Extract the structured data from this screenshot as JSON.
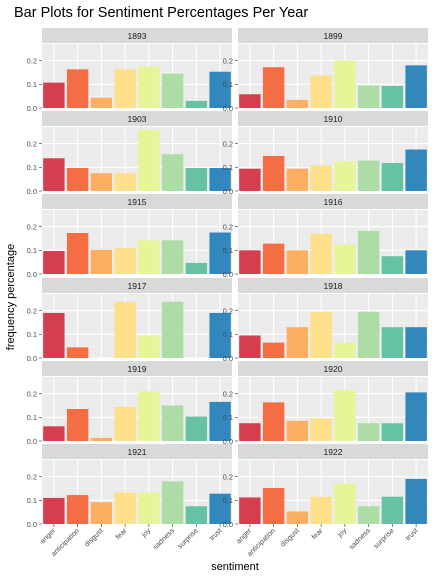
{
  "chart_data": {
    "type": "bar",
    "title": "Bar Plots for Sentiment Percentages Per Year",
    "xlabel": "sentiment",
    "ylabel": "frequency percentage",
    "ylim": [
      0,
      0.27
    ],
    "yticks": [
      "0.0",
      "0.1",
      "0.2"
    ],
    "ytick_values": [
      0,
      0.1,
      0.2
    ],
    "grid": true,
    "legend": "none",
    "categories": [
      "anger",
      "anticipation",
      "disgust",
      "fear",
      "joy",
      "sadness",
      "surprise",
      "trust"
    ],
    "colors": [
      "#D53E4F",
      "#F46D43",
      "#FDAE61",
      "#FEE08B",
      "#E6F598",
      "#ABDDA4",
      "#66C2A5",
      "#3288BD"
    ],
    "panels": [
      {
        "label": "1893",
        "values": [
          0.107,
          0.163,
          0.043,
          0.163,
          0.175,
          0.145,
          0.03,
          0.153
        ]
      },
      {
        "label": "1899",
        "values": [
          0.058,
          0.172,
          0.034,
          0.137,
          0.2,
          0.095,
          0.093,
          0.18
        ]
      },
      {
        "label": "1903",
        "values": [
          0.138,
          0.097,
          0.075,
          0.075,
          0.258,
          0.155,
          0.097,
          0.097
        ]
      },
      {
        "label": "1910",
        "values": [
          0.094,
          0.148,
          0.094,
          0.108,
          0.125,
          0.128,
          0.118,
          0.175
        ]
      },
      {
        "label": "1915",
        "values": [
          0.097,
          0.173,
          0.102,
          0.11,
          0.142,
          0.142,
          0.047,
          0.175
        ]
      },
      {
        "label": "1916",
        "values": [
          0.1,
          0.128,
          0.1,
          0.17,
          0.125,
          0.182,
          0.075,
          0.1
        ]
      },
      {
        "label": "1917",
        "values": [
          0.19,
          0.045,
          0.0,
          0.237,
          0.095,
          0.237,
          0.0,
          0.19
        ]
      },
      {
        "label": "1918",
        "values": [
          0.095,
          0.065,
          0.13,
          0.195,
          0.065,
          0.195,
          0.13,
          0.13
        ]
      },
      {
        "label": "1919",
        "values": [
          0.062,
          0.135,
          0.013,
          0.145,
          0.21,
          0.15,
          0.103,
          0.165
        ]
      },
      {
        "label": "1920",
        "values": [
          0.075,
          0.163,
          0.085,
          0.095,
          0.215,
          0.075,
          0.075,
          0.205
        ]
      },
      {
        "label": "1921",
        "values": [
          0.11,
          0.122,
          0.092,
          0.133,
          0.133,
          0.18,
          0.075,
          0.128
        ]
      },
      {
        "label": "1922",
        "values": [
          0.112,
          0.152,
          0.053,
          0.115,
          0.17,
          0.075,
          0.115,
          0.19
        ]
      }
    ]
  }
}
